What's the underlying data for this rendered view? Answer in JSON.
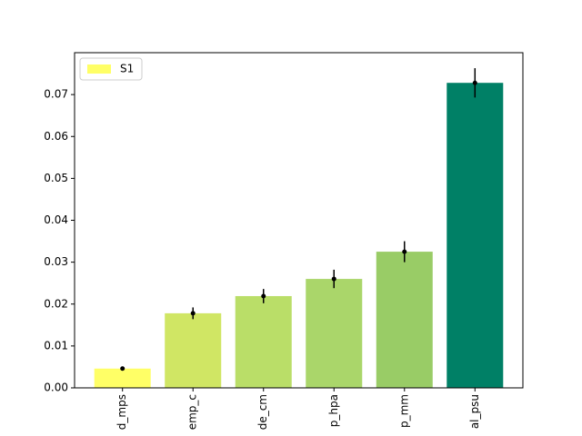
{
  "chart_data": {
    "type": "bar",
    "categories": [
      "d_mps",
      "emp_c",
      "de_cm",
      "p_hpa",
      "p_mm",
      "al_psu"
    ],
    "series": [
      {
        "name": "S1",
        "colors": [
          "#ffff66",
          "#d0e664",
          "#bade68",
          "#aad66a",
          "#99cc66",
          "#008066"
        ],
        "values": [
          0.0046,
          0.0178,
          0.0219,
          0.026,
          0.0325,
          0.0728
        ],
        "errors": [
          0.0003,
          0.0014,
          0.0017,
          0.0022,
          0.0025,
          0.0035
        ]
      }
    ],
    "ylim": [
      0,
      0.08
    ],
    "yticks": [
      {
        "value": 0,
        "label": "0.00"
      },
      {
        "value": 0.01,
        "label": "0.01"
      },
      {
        "value": 0.02,
        "label": "0.02"
      },
      {
        "value": 0.03,
        "label": "0.03"
      },
      {
        "value": 0.04,
        "label": "0.04"
      },
      {
        "value": 0.05,
        "label": "0.05"
      },
      {
        "value": 0.06,
        "label": "0.06"
      },
      {
        "value": 0.07,
        "label": "0.07"
      }
    ],
    "legend": "upper left"
  }
}
